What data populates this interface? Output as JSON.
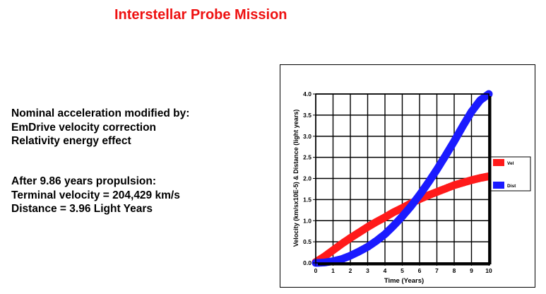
{
  "page": {
    "title": "Interstellar Probe Mission",
    "notes": {
      "lines_1": [
        "Nominal acceleration modified by:",
        "EmDrive velocity correction",
        "Relativity energy effect"
      ],
      "lines_2": [
        "After 9.86 years propulsion:",
        "Terminal velocity = 204,429 km/s",
        "Distance = 3.96 Light Years"
      ]
    }
  },
  "chart_data": {
    "type": "line",
    "title": "",
    "xlabel": "Time (Years)",
    "ylabel": "Velocity (km/sx10E-5) & Distance (light years)",
    "xlim": [
      0,
      10
    ],
    "ylim": [
      0,
      4.0
    ],
    "x_ticks": [
      "0",
      "1",
      "2",
      "3",
      "4",
      "5",
      "6",
      "7",
      "8",
      "9",
      "10"
    ],
    "y_ticks": [
      "0.0",
      "0.5",
      "1.0",
      "1.5",
      "2.0",
      "2.5",
      "3.0",
      "3.5",
      "4.0"
    ],
    "grid": true,
    "legend_position": "right",
    "x": [
      0,
      0.5,
      1,
      1.5,
      2,
      2.5,
      3,
      3.5,
      4,
      4.5,
      5,
      5.5,
      6,
      6.5,
      7,
      7.5,
      8,
      8.5,
      9,
      9.5,
      10
    ],
    "series": [
      {
        "name": "Vel",
        "color": "#ff1a1a",
        "values": [
          0.02,
          0.15,
          0.3,
          0.45,
          0.59,
          0.72,
          0.85,
          0.97,
          1.08,
          1.2,
          1.3,
          1.41,
          1.51,
          1.6,
          1.68,
          1.76,
          1.84,
          1.9,
          1.96,
          2.01,
          2.05
        ]
      },
      {
        "name": "Dist",
        "color": "#1a1aff",
        "values": [
          0.0,
          0.01,
          0.04,
          0.09,
          0.17,
          0.27,
          0.38,
          0.52,
          0.68,
          0.88,
          1.1,
          1.34,
          1.61,
          1.9,
          2.21,
          2.54,
          2.88,
          3.24,
          3.58,
          3.85,
          4.0
        ]
      }
    ]
  }
}
